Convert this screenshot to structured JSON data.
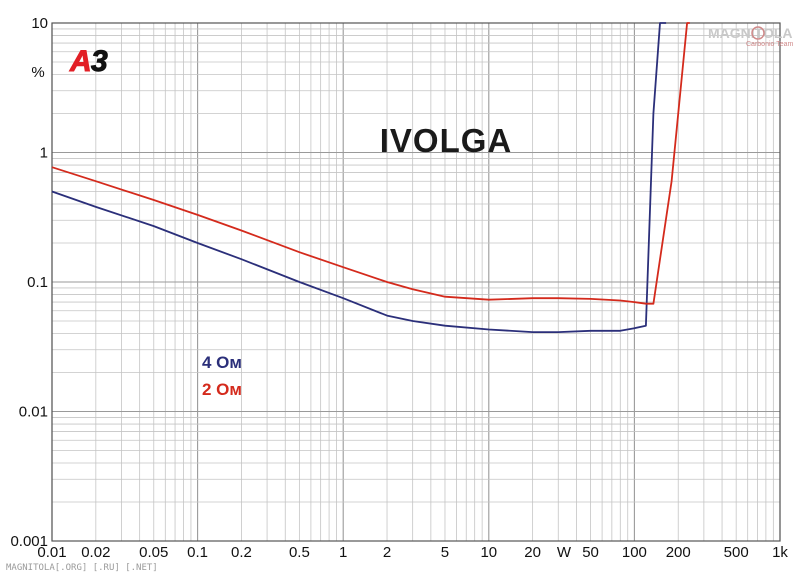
{
  "chart_data": {
    "type": "line",
    "title": "IVOLGA",
    "ylabel": "%",
    "xscale": "log",
    "yscale": "log",
    "xlim": [
      0.01,
      1000
    ],
    "ylim": [
      0.001,
      10
    ],
    "grid": true,
    "x_ticks": [
      {
        "v": 0.01,
        "label": "0.01"
      },
      {
        "v": 0.02,
        "label": "0.02"
      },
      {
        "v": 0.05,
        "label": "0.05"
      },
      {
        "v": 0.1,
        "label": "0.1"
      },
      {
        "v": 0.2,
        "label": "0.2"
      },
      {
        "v": 0.5,
        "label": "0.5"
      },
      {
        "v": 1,
        "label": "1"
      },
      {
        "v": 2,
        "label": "2"
      },
      {
        "v": 5,
        "label": "5"
      },
      {
        "v": 10,
        "label": "10"
      },
      {
        "v": 20,
        "label": "20"
      },
      {
        "v": 50,
        "label": "50"
      },
      {
        "v": 100,
        "label": "100"
      },
      {
        "v": 200,
        "label": "200"
      },
      {
        "v": 500,
        "label": "500"
      },
      {
        "v": 1000,
        "label": "1k"
      }
    ],
    "x_unit_label": "W",
    "y_ticks": [
      {
        "v": 10,
        "label": "10"
      },
      {
        "v": 1,
        "label": "1"
      },
      {
        "v": 0.1,
        "label": "0.1"
      },
      {
        "v": 0.01,
        "label": "0.01"
      },
      {
        "v": 0.001,
        "label": "0.001"
      }
    ],
    "series": [
      {
        "name": "4 Ом",
        "color": "#2b2f7a",
        "points": [
          [
            0.01,
            0.5
          ],
          [
            0.02,
            0.38
          ],
          [
            0.05,
            0.27
          ],
          [
            0.1,
            0.2
          ],
          [
            0.2,
            0.15
          ],
          [
            0.5,
            0.1
          ],
          [
            1,
            0.075
          ],
          [
            2,
            0.055
          ],
          [
            3,
            0.05
          ],
          [
            5,
            0.046
          ],
          [
            10,
            0.043
          ],
          [
            20,
            0.041
          ],
          [
            30,
            0.041
          ],
          [
            50,
            0.042
          ],
          [
            80,
            0.042
          ],
          [
            100,
            0.044
          ],
          [
            120,
            0.046
          ],
          [
            135,
            2.0
          ],
          [
            150,
            10
          ],
          [
            165,
            10
          ]
        ]
      },
      {
        "name": "2 Ом",
        "color": "#d42a1c",
        "points": [
          [
            0.01,
            0.77
          ],
          [
            0.02,
            0.6
          ],
          [
            0.05,
            0.43
          ],
          [
            0.1,
            0.33
          ],
          [
            0.2,
            0.25
          ],
          [
            0.5,
            0.17
          ],
          [
            1,
            0.13
          ],
          [
            2,
            0.1
          ],
          [
            3,
            0.088
          ],
          [
            5,
            0.077
          ],
          [
            10,
            0.073
          ],
          [
            20,
            0.075
          ],
          [
            30,
            0.075
          ],
          [
            50,
            0.074
          ],
          [
            80,
            0.072
          ],
          [
            100,
            0.07
          ],
          [
            120,
            0.068
          ],
          [
            135,
            0.068
          ],
          [
            180,
            0.6
          ],
          [
            230,
            10
          ],
          [
            240,
            10
          ]
        ]
      }
    ]
  },
  "legend": {
    "series1_label": "4 Ом",
    "series2_label": "2 Ом",
    "series1_color": "#2b2f7a",
    "series2_color": "#d42a1c"
  },
  "branding": {
    "logo": "A3",
    "watermark": "MAGNITOLA[.ORG] [.RU] [.NET]",
    "corner_tag": "MAGNITOLA",
    "corner_sub": "Carbonio Team"
  }
}
